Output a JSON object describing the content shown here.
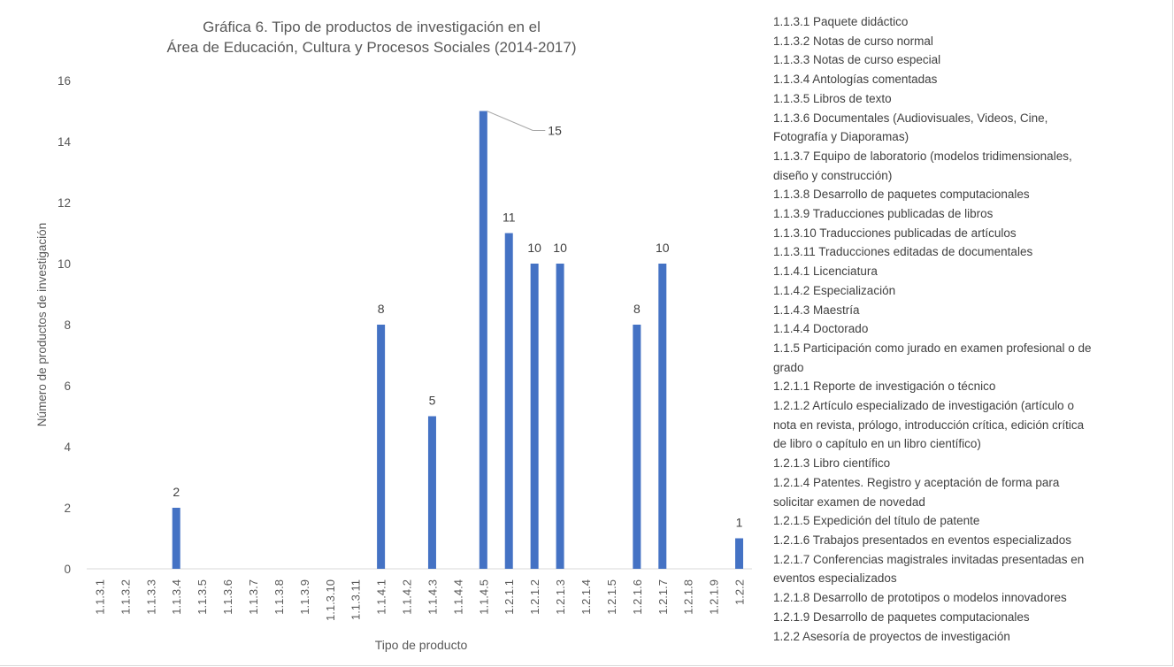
{
  "chart_data": {
    "type": "bar",
    "title_lines": [
      "Gráfica 6. Tipo de productos de investigación en el",
      "Área de Educación, Cultura y Procesos Sociales (2014-2017)"
    ],
    "xlabel": "Tipo de producto",
    "ylabel": "Número de productos de investigación",
    "ylim": [
      0,
      16
    ],
    "yticks": [
      0,
      2,
      4,
      6,
      8,
      10,
      12,
      14,
      16
    ],
    "grid": false,
    "legend_position": "right",
    "bar_color": "#4472c4",
    "categories": [
      "1.1.3.1",
      "1.1.3.2",
      "1.1.3.3",
      "1.1.3.4",
      "1.1.3.5",
      "1.1.3.6",
      "1.1.3.7",
      "1.1.3.8",
      "1.1.3.9",
      "1.1.3.10",
      "1.1.3.11",
      "1.1.4.1",
      "1.1.4.2",
      "1.1.4.3",
      "1.1.4.4",
      "1.1.4.5",
      "1.2.1.1",
      "1.2.1.2",
      "1.2.1.3",
      "1.2.1.4",
      "1.2.1.5",
      "1.2.1.6",
      "1.2.1.7",
      "1.2.1.8",
      "1.2.1.9",
      "1.2.2"
    ],
    "values": [
      0,
      0,
      0,
      2,
      0,
      0,
      0,
      0,
      0,
      0,
      0,
      8,
      0,
      5,
      0,
      15,
      11,
      10,
      10,
      0,
      0,
      8,
      10,
      0,
      0,
      1
    ]
  },
  "legend_items": [
    "1.1.3.1 Paquete didáctico",
    "1.1.3.2 Notas de curso normal",
    "1.1.3.3 Notas de curso especial",
    "1.1.3.4 Antologías comentadas",
    "1.1.3.5 Libros de texto",
    "1.1.3.6 Documentales (Audiovisuales, Videos, Cine,",
    "Fotografía y Diaporamas)",
    "1.1.3.7 Equipo de laboratorio (modelos tridimensionales,",
    "diseño y construcción)",
    "1.1.3.8 Desarrollo de paquetes computacionales",
    "1.1.3.9 Traducciones publicadas de libros",
    "1.1.3.10 Traducciones publicadas de artículos",
    "1.1.3.11 Traducciones editadas de documentales",
    "1.1.4.1 Licenciatura",
    "1.1.4.2 Especialización",
    "1.1.4.3 Maestría",
    "1.1.4.4 Doctorado",
    "1.1.5 Participación como jurado en examen profesional o de",
    "grado",
    "1.2.1.1 Reporte de investigación o técnico",
    "1.2.1.2 Artículo especializado de investigación (artículo o",
    "nota en revista, prólogo, introducción crítica, edición crítica",
    "de libro o capítulo en un libro científico)",
    "1.2.1.3 Libro científico",
    "1.2.1.4 Patentes. Registro y aceptación de forma para",
    "solicitar examen de novedad",
    "1.2.1.5 Expedición del título de patente",
    "1.2.1.6 Trabajos presentados en eventos especializados",
    "1.2.1.7 Conferencias magistrales invitadas presentadas en",
    "eventos especializados",
    "1.2.1.8 Desarrollo de prototipos o modelos innovadores",
    "1.2.1.9 Desarrollo de paquetes computacionales",
    "1.2.2 Asesoría de proyectos de investigación"
  ]
}
